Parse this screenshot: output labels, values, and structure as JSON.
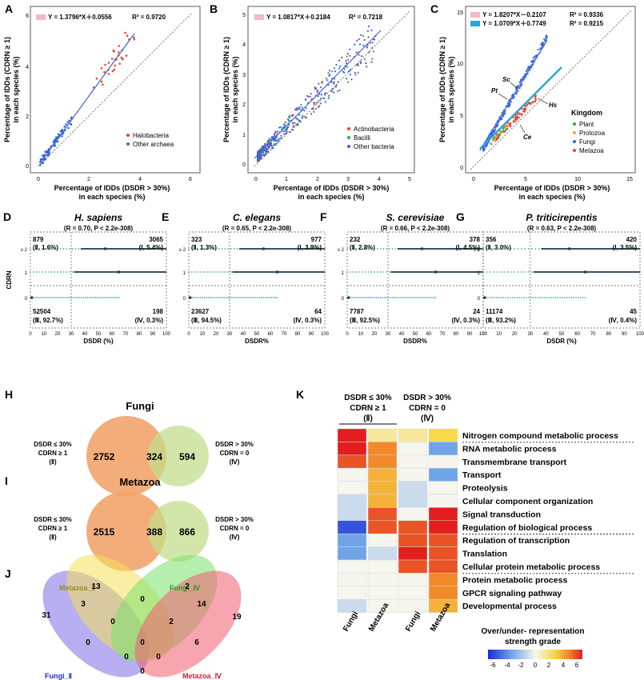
{
  "panels": {
    "A": {
      "label": "A",
      "ylabel": [
        "Percentage of IDDs (CDRN ≥ 1)",
        "in each species (%)"
      ],
      "xlabel": [
        "Percentage of IDDs (DSDR > 30%)",
        "in each species (%)"
      ],
      "equation": "Y = 1.3796*X＋0.0556",
      "r2": "R² = 0.9720",
      "legend": [
        "Halobacteria",
        "Other archaea"
      ],
      "xticks": [
        "0",
        "2",
        "4",
        "6"
      ],
      "yticks": [
        "0",
        "2",
        "4",
        "6"
      ]
    },
    "B": {
      "label": "B",
      "ylabel": [
        "Percentage of IDDs (CDRN ≥ 1)",
        "in each species (%)"
      ],
      "xlabel": [
        "Percentage of IDDs (DSDR > 30%)",
        "in each species (%)"
      ],
      "equation": "Y = 1.0817*X＋0.2184",
      "r2": "R² = 0.7218",
      "legend": [
        "Actinobacteria",
        "Bacilli",
        "Other bacteria"
      ],
      "xticks": [
        "0",
        "1",
        "2",
        "3",
        "4",
        "5"
      ],
      "yticks": [
        "0",
        "1",
        "2",
        "3",
        "4",
        "5"
      ]
    },
    "C": {
      "label": "C",
      "ylabel": [
        "Percentage of IDDs (CDRN ≥ 1)",
        "in each species (%)"
      ],
      "xlabel": [
        "Percentage of IDDs (DSDR > 30%)",
        "in each species (%)"
      ],
      "equations": [
        {
          "eq": "Y = 1.8207*X－0.2107",
          "r2": "R² = 0.9336"
        },
        {
          "eq": "Y = 1.0709*X＋0.7749",
          "r2": "R² = 0.9215"
        }
      ],
      "annotations": [
        "Sc",
        "Pt",
        "Hs",
        "Ce"
      ],
      "legend_title": "Kingdom",
      "legend": [
        "Plant",
        "Protozoa",
        "Fungi",
        "Metazoa"
      ],
      "xticks": [
        "0",
        "5",
        "10",
        "15"
      ],
      "yticks": [
        "0",
        "5",
        "10",
        "15"
      ]
    },
    "scatter_common": {
      "ylabel": "CDRN",
      "yticks": [
        "≥ 2",
        "1",
        "0"
      ],
      "xticks": [
        "0",
        "10",
        "20",
        "30",
        "40",
        "50",
        "60",
        "70",
        "80",
        "90",
        "100"
      ]
    },
    "D": {
      "label": "D",
      "title": "H. sapiens",
      "stat": "(R = 0.70, P < 2.2e-308)",
      "xlabel": "DSDR (%)",
      "q2": [
        "879",
        "(Ⅱ, 1.6%)"
      ],
      "q1": [
        "3065",
        "(Ⅰ, 5.4%)"
      ],
      "q3": [
        "52504",
        "(Ⅲ, 92.7%)"
      ],
      "q4": [
        "198",
        "(Ⅳ, 0.3%)"
      ]
    },
    "E": {
      "label": "E",
      "title": "C. elegans",
      "stat": "(R = 0.65, P < 2.2e-308)",
      "xlabel": "DSDR%",
      "q2": [
        "323",
        "(Ⅱ, 1.3%)"
      ],
      "q1": [
        "977",
        "(Ⅰ, 3.9%)"
      ],
      "q3": [
        "23627",
        "(Ⅲ, 94.5%)"
      ],
      "q4": [
        "64",
        "(Ⅳ, 0.3%)"
      ]
    },
    "F": {
      "label": "F",
      "title": "S. cerevisiae",
      "stat": "(R = 0.66, P < 2.2e-308)",
      "xlabel": "DSDR%",
      "q2": [
        "232",
        "(Ⅱ, 2.8%)"
      ],
      "q1": [
        "378",
        "(Ⅰ, 4.5%)"
      ],
      "q3": [
        "7787",
        "(Ⅲ, 92.5%)"
      ],
      "q4": [
        "24",
        "(Ⅳ, 0.3%)"
      ]
    },
    "G": {
      "label": "G",
      "title": "P. triticirepentis",
      "stat": "(R = 0.63, P < 2.2e-308)",
      "xlabel": "DSDR (%)",
      "q2": [
        "356",
        "(Ⅱ, 3.0%)"
      ],
      "q1": [
        "420",
        "(Ⅰ, 3.5%)"
      ],
      "q3": [
        "11174",
        "(Ⅲ, 93.2%)"
      ],
      "q4": [
        "45",
        "(Ⅳ, 0.4%)"
      ]
    },
    "H": {
      "label": "H",
      "title": "Fungi",
      "left": "2752",
      "mid": "324",
      "right": "594",
      "left_label": [
        "DSDR ≤ 30%",
        "CDRN ≥ 1",
        "(Ⅱ)"
      ],
      "right_label": [
        "DSDR > 30%",
        "CDRN = 0",
        "(Ⅳ)"
      ]
    },
    "I": {
      "label": "I",
      "title": "Metazoa",
      "left": "2515",
      "mid": "388",
      "right": "866",
      "left_label": [
        "DSDR ≤ 30%",
        "CDRN ≥ 1",
        "(Ⅱ)"
      ],
      "right_label": [
        "DSDR > 30%",
        "CDRN = 0",
        "(Ⅳ)"
      ]
    },
    "J": {
      "label": "J",
      "sets": [
        "Metazoa_Ⅱ",
        "Fungi_Ⅳ",
        "Fungi_Ⅱ",
        "Metazoa_Ⅳ"
      ],
      "numbers": [
        "13",
        "2",
        "31",
        "3",
        "0",
        "14",
        "19",
        "0",
        "2",
        "0",
        "6",
        "0",
        "0",
        "0",
        "0"
      ]
    },
    "K": {
      "label": "K",
      "group_left": [
        "DSDR ≤ 30%",
        "CDRN ≥ 1",
        "(Ⅱ)"
      ],
      "group_right": [
        "DSDR > 30%",
        "CDRN = 0",
        "(Ⅳ)"
      ],
      "columns": [
        "Fungi",
        "Metazoa",
        "Fungi",
        "Metazoa"
      ],
      "rows": [
        "Nitrogen compound metabolic process",
        "RNA metabolic process",
        "Transmembrane transport",
        "Transport",
        "Proteolysis",
        "Cellular component organization",
        "Signal transduction",
        "Regulation of biological process",
        "Regulation of transcription",
        "Translation",
        "Cellular protein metabolic process",
        "Protein metabolic process",
        "GPCR signaling pathway",
        "Developmental process"
      ],
      "legend_title": [
        "Over/under- representation",
        "strength grade"
      ],
      "legend_ticks": [
        "-6",
        "-4",
        "-2",
        "0",
        "2",
        "4",
        "6"
      ]
    }
  },
  "colors": {
    "halobacteria": "#e8452c",
    "other": "#3a64d8",
    "bacilli": "#3aa641",
    "fungi_line": "#4a73d6",
    "metazoa_line": "#26a5d8",
    "orange_circle": "#f2a46b",
    "green_circle": "#c4dd8c",
    "teal": "#3ea8b8",
    "dark": "#1d3d4a"
  },
  "heatmap_data": {
    "values": [
      [
        6,
        1,
        1,
        2
      ],
      [
        6,
        4,
        0,
        -3
      ],
      [
        5,
        4,
        0,
        0
      ],
      [
        0,
        3,
        0,
        -3
      ],
      [
        0,
        3,
        -1,
        0
      ],
      [
        -1,
        3,
        -1,
        0
      ],
      [
        -1,
        5,
        0,
        6
      ],
      [
        -5,
        5,
        5,
        6
      ],
      [
        -3,
        0,
        5,
        5
      ],
      [
        -3,
        -1,
        6,
        5
      ],
      [
        0,
        0,
        5,
        5
      ],
      [
        0,
        0,
        0,
        4
      ],
      [
        0,
        0,
        0,
        4
      ],
      [
        -1,
        0,
        0,
        3
      ]
    ]
  }
}
